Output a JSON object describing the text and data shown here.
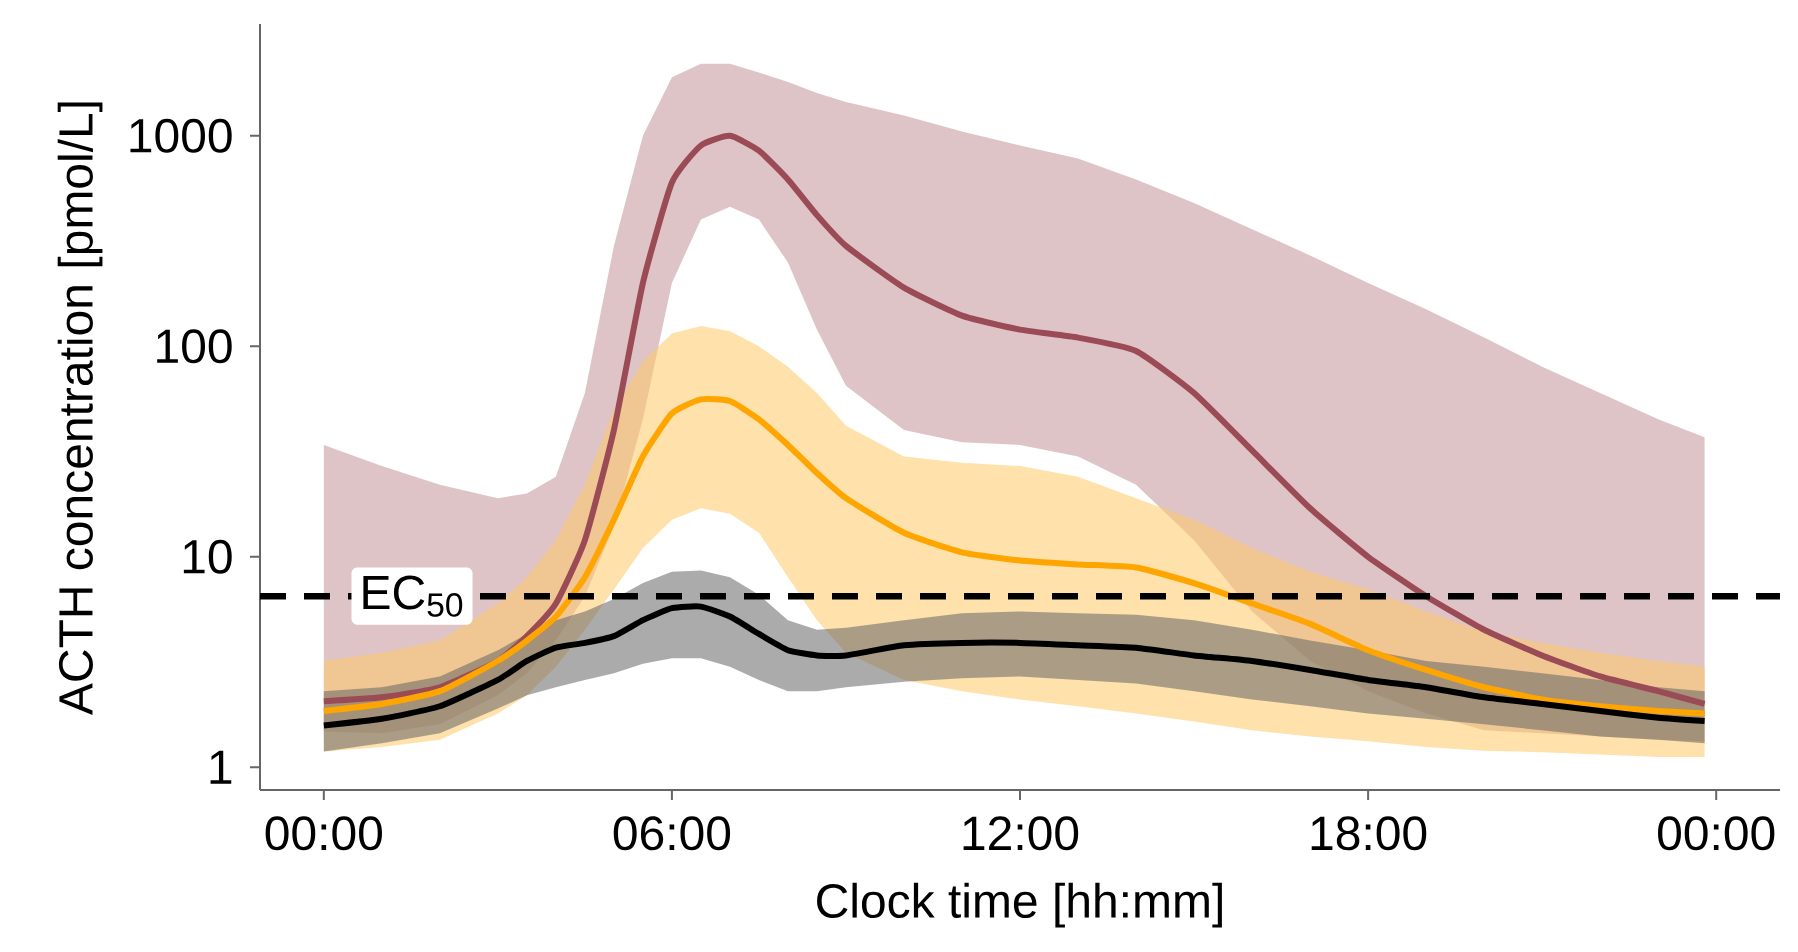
{
  "chart_data": {
    "type": "line",
    "xlabel": "Clock time [hh:mm]",
    "ylabel": "ACTH concentration [pmol/L]",
    "log": "y",
    "x": [
      0,
      1,
      2,
      3,
      3.5,
      4,
      4.5,
      5,
      5.5,
      6,
      6.5,
      7,
      7.5,
      8,
      8.5,
      9,
      10,
      11,
      12,
      13,
      14,
      15,
      16,
      17,
      18,
      19,
      20,
      21,
      22,
      23,
      23.8
    ],
    "xlim": [
      -1.1,
      25.1
    ],
    "ylim": [
      0.78,
      3400
    ],
    "xticks": [
      {
        "value": 0,
        "label": "00:00"
      },
      {
        "value": 6,
        "label": "06:00"
      },
      {
        "value": 12,
        "label": "12:00"
      },
      {
        "value": 18,
        "label": "18:00"
      },
      {
        "value": 24,
        "label": "00:00"
      }
    ],
    "yticks": [
      1,
      10,
      100,
      1000
    ],
    "series": [
      {
        "color": "#9a4b55",
        "values": [
          2.06,
          2.15,
          2.4,
          3.2,
          4.2,
          6,
          12,
          40,
          200,
          600,
          900,
          1000,
          850,
          620,
          420,
          300,
          190,
          140,
          120,
          110,
          95,
          60,
          32,
          17,
          10,
          6.5,
          4.5,
          3.4,
          2.7,
          2.3,
          2.0
        ],
        "upper": [
          34,
          27,
          22,
          19,
          20,
          24,
          60,
          300,
          1000,
          1900,
          2200,
          2200,
          2000,
          1800,
          1600,
          1450,
          1250,
          1050,
          900,
          780,
          620,
          480,
          360,
          270,
          200,
          150,
          110,
          80,
          60,
          45,
          37
        ],
        "lower": [
          1.48,
          1.45,
          1.6,
          2.2,
          2.8,
          4,
          6.5,
          14,
          45,
          200,
          400,
          460,
          400,
          250,
          120,
          65,
          40,
          35,
          34,
          30,
          22,
          12,
          5.5,
          3.2,
          2.3,
          1.8,
          1.5,
          1.45,
          1.4,
          1.35,
          1.33
        ]
      },
      {
        "color": "#ffa500",
        "values": [
          1.85,
          2.0,
          2.3,
          3.2,
          4.0,
          5.2,
          8,
          15,
          30,
          48,
          56,
          55,
          45,
          34,
          25,
          19,
          13,
          10.5,
          9.6,
          9.2,
          8.9,
          7.5,
          6.0,
          4.8,
          3.6,
          2.9,
          2.4,
          2.1,
          1.95,
          1.85,
          1.8
        ],
        "upper": [
          3.2,
          3.5,
          4.0,
          6,
          8,
          12,
          22,
          50,
          85,
          115,
          125,
          118,
          100,
          80,
          60,
          42,
          30,
          28,
          27,
          24,
          19,
          15,
          11,
          8.5,
          7,
          5.5,
          4.4,
          3.9,
          3.5,
          3.2,
          3.0
        ],
        "lower": [
          1.19,
          1.25,
          1.35,
          1.8,
          2.2,
          3.0,
          4.5,
          7,
          11,
          15,
          17,
          16,
          13,
          8,
          5,
          3.5,
          2.6,
          2.3,
          2.1,
          1.95,
          1.8,
          1.65,
          1.5,
          1.4,
          1.33,
          1.25,
          1.2,
          1.18,
          1.15,
          1.12,
          1.12
        ]
      },
      {
        "color": "#000000",
        "values": [
          1.58,
          1.7,
          1.95,
          2.6,
          3.2,
          3.7,
          3.9,
          4.2,
          5.0,
          5.7,
          5.8,
          5.2,
          4.3,
          3.6,
          3.4,
          3.4,
          3.8,
          3.9,
          3.9,
          3.8,
          3.7,
          3.4,
          3.2,
          2.9,
          2.6,
          2.4,
          2.15,
          2.0,
          1.85,
          1.72,
          1.66
        ],
        "upper": [
          2.3,
          2.4,
          2.7,
          3.6,
          4.3,
          5.0,
          5.5,
          6.3,
          7.5,
          8.5,
          8.6,
          8.0,
          6.6,
          5.0,
          4.5,
          4.6,
          5.0,
          5.4,
          5.5,
          5.4,
          5.3,
          5.0,
          4.5,
          4.0,
          3.6,
          3.2,
          3.0,
          2.8,
          2.6,
          2.4,
          2.3
        ],
        "lower": [
          1.19,
          1.3,
          1.45,
          1.9,
          2.2,
          2.4,
          2.6,
          2.8,
          3.1,
          3.3,
          3.3,
          3.0,
          2.6,
          2.3,
          2.3,
          2.4,
          2.55,
          2.65,
          2.7,
          2.6,
          2.5,
          2.3,
          2.1,
          1.95,
          1.8,
          1.7,
          1.6,
          1.5,
          1.4,
          1.35,
          1.3
        ]
      }
    ],
    "ref_lines": [
      {
        "axis": "y",
        "value": 6.5,
        "label": "EC$_{50}$",
        "color": "#000000",
        "line_style": "dashed"
      }
    ]
  }
}
